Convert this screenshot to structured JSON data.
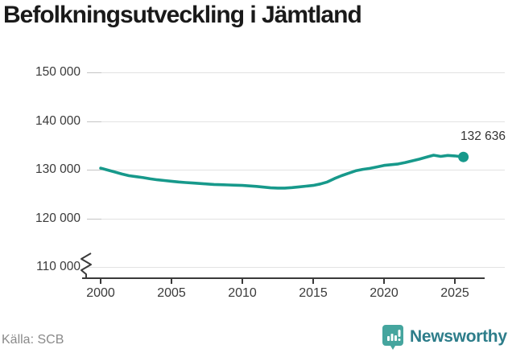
{
  "title": "Befolkningsutveckling i Jämtland",
  "footer": {
    "source": "Källa: SCB",
    "brand": "Newsworthy"
  },
  "colors": {
    "line": "#17998b",
    "end_dot": "#17998b",
    "badge": "#45a59e",
    "brand_text": "#2d7d8a",
    "axis": "#3a3a3a",
    "gridline": "#e2e2e2"
  },
  "chart_data": {
    "type": "line",
    "title": "Befolkningsutveckling i Jämtland",
    "xlabel": "",
    "ylabel": "",
    "ylim": [
      110000,
      150000
    ],
    "grid": "horizontal",
    "axis_break_at_bottom": true,
    "y_ticks": [
      "150 000",
      "140 000",
      "130 000",
      "120 000",
      "110 000"
    ],
    "y_tick_values": [
      150000,
      140000,
      130000,
      120000,
      110000
    ],
    "x_ticks": [
      "2000",
      "2005",
      "2010",
      "2015",
      "2020",
      "2025"
    ],
    "end_label": "132 636",
    "end_value": 132636,
    "source": "SCB",
    "x": [
      2000,
      2000.5,
      2001,
      2001.5,
      2002,
      2002.5,
      2003,
      2003.5,
      2004,
      2004.5,
      2005,
      2005.5,
      2006,
      2006.5,
      2007,
      2007.5,
      2008,
      2008.5,
      2009,
      2009.5,
      2010,
      2010.5,
      2011,
      2011.5,
      2012,
      2012.5,
      2013,
      2013.5,
      2014,
      2014.5,
      2015,
      2015.5,
      2016,
      2016.5,
      2017,
      2017.5,
      2018,
      2018.5,
      2019,
      2019.5,
      2020,
      2020.5,
      2021,
      2021.5,
      2022,
      2022.5,
      2023,
      2023.5,
      2024,
      2024.5,
      2025,
      2025.6
    ],
    "values": [
      130350,
      129950,
      129550,
      129150,
      128800,
      128600,
      128400,
      128150,
      127950,
      127800,
      127650,
      127500,
      127400,
      127300,
      127200,
      127100,
      127000,
      126950,
      126900,
      126850,
      126800,
      126700,
      126600,
      126450,
      126300,
      126250,
      126250,
      126350,
      126500,
      126650,
      126800,
      127100,
      127500,
      128200,
      128800,
      129300,
      129800,
      130100,
      130300,
      130600,
      130900,
      131050,
      131200,
      131500,
      131850,
      132200,
      132600,
      133000,
      132750,
      132950,
      132850,
      132636
    ]
  }
}
